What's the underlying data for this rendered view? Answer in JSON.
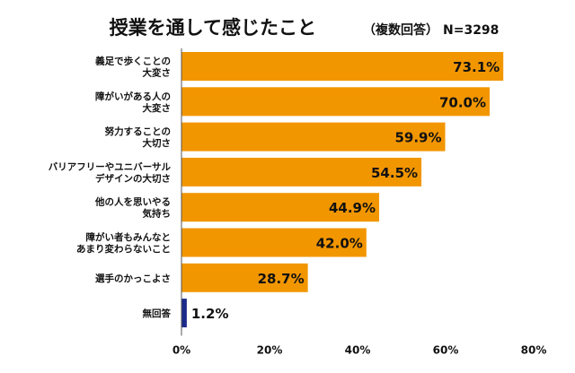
{
  "chart_data": {
    "type": "bar",
    "orientation": "horizontal",
    "title": "授業を通して感じたこと",
    "subtitle": "（複数回答）",
    "sample_size": "N=3298",
    "categories": [
      [
        "義足で歩くことの",
        "大変さ"
      ],
      [
        "障がいがある人の",
        "大変さ"
      ],
      [
        "努力することの",
        "大切さ"
      ],
      [
        "バリアフリーやユニバーサル",
        "デザインの大切さ"
      ],
      [
        "他の人を思いやる",
        "気持ち"
      ],
      [
        "障がい者もみんなと",
        "あまり変わらないこと"
      ],
      [
        "選手のかっこよさ"
      ],
      [
        "無回答"
      ]
    ],
    "values": [
      73.1,
      70.0,
      59.9,
      54.5,
      44.9,
      42.0,
      28.7,
      1.2
    ],
    "value_labels": [
      "73.1%",
      "70.0%",
      "59.9%",
      "54.5%",
      "44.9%",
      "42.0%",
      "28.7%",
      "1.2%"
    ],
    "bar_colors": [
      "#f29600",
      "#f29600",
      "#f29600",
      "#f29600",
      "#f29600",
      "#f29600",
      "#f29600",
      "#1c2a8a"
    ],
    "xlim": [
      0,
      80
    ],
    "x_ticks": [
      "0%",
      "20%",
      "40%",
      "60%",
      "80%"
    ],
    "grid": false
  }
}
